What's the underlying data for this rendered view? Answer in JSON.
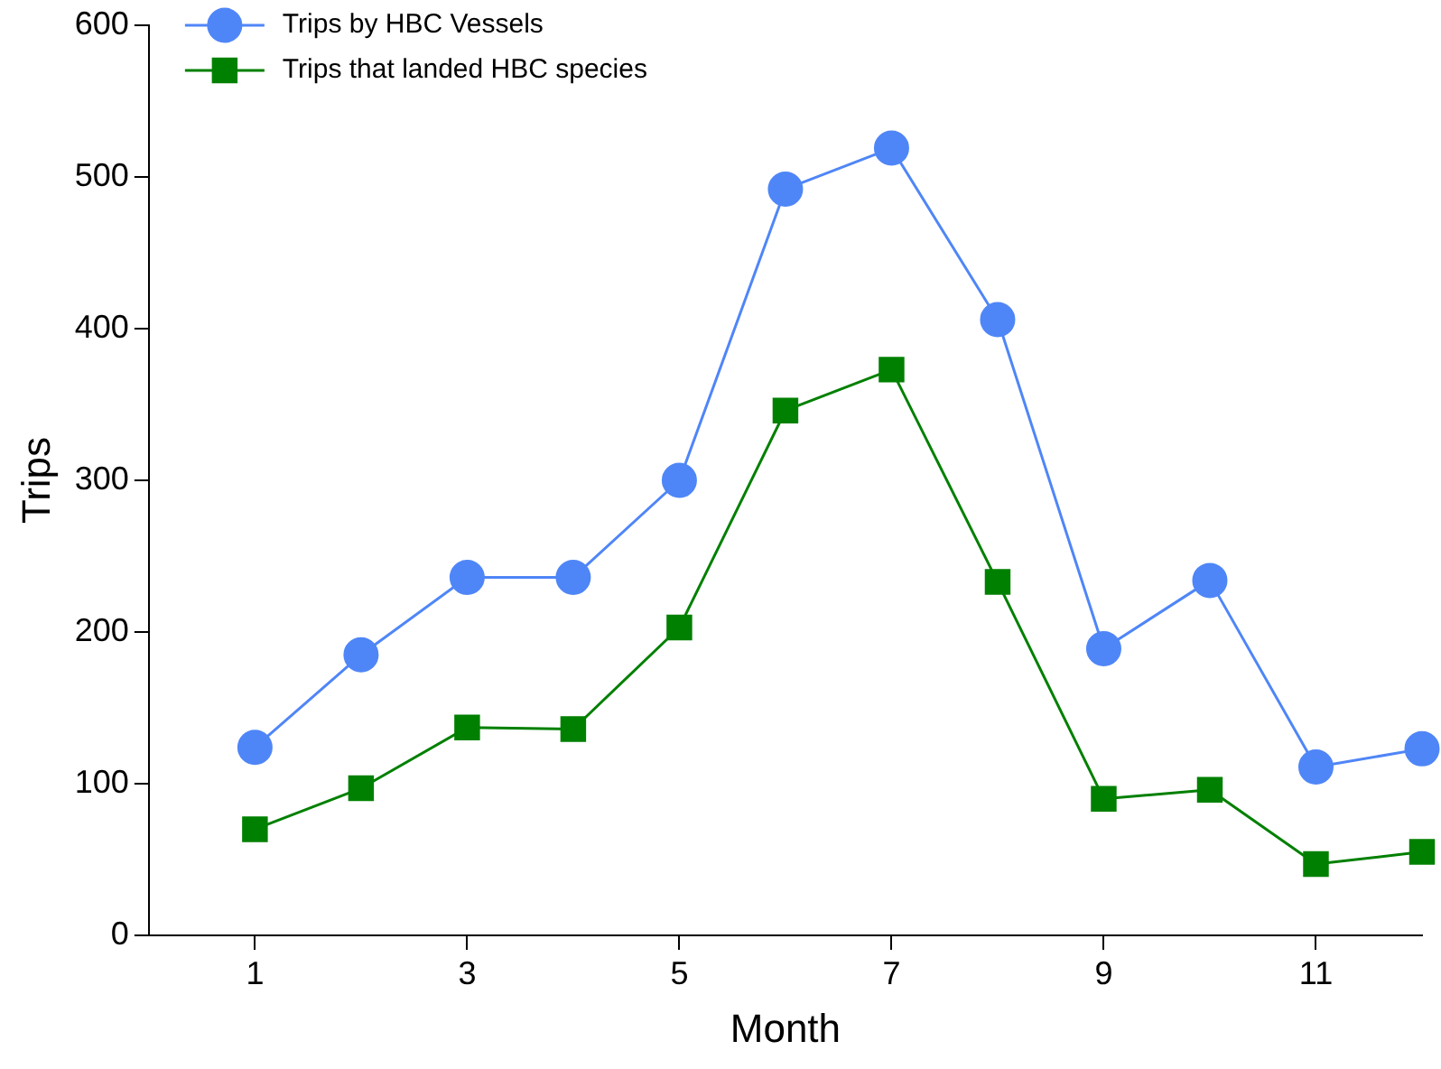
{
  "chart_data": {
    "type": "line",
    "xlabel": "Month",
    "ylabel": "Trips",
    "x": [
      1,
      2,
      3,
      4,
      5,
      6,
      7,
      8,
      9,
      10,
      11,
      12
    ],
    "xlim": [
      0,
      12
    ],
    "xticks": [
      1,
      3,
      5,
      7,
      9,
      11
    ],
    "ylim": [
      0,
      600
    ],
    "yticks": [
      0,
      100,
      200,
      300,
      400,
      500,
      600
    ],
    "grid": false,
    "legend": "top left",
    "line_style": "solid",
    "series": [
      {
        "name": "Trips by HBC Vessels",
        "color": "#4f86f7",
        "marker": "circle",
        "values": [
          124,
          185,
          236,
          236,
          300,
          492,
          519,
          406,
          189,
          234,
          111,
          123
        ]
      },
      {
        "name": "Trips that landed HBC species",
        "color": "#008000",
        "marker": "square",
        "values": [
          70,
          97,
          137,
          136,
          203,
          346,
          373,
          233,
          90,
          96,
          47,
          55
        ]
      }
    ]
  }
}
